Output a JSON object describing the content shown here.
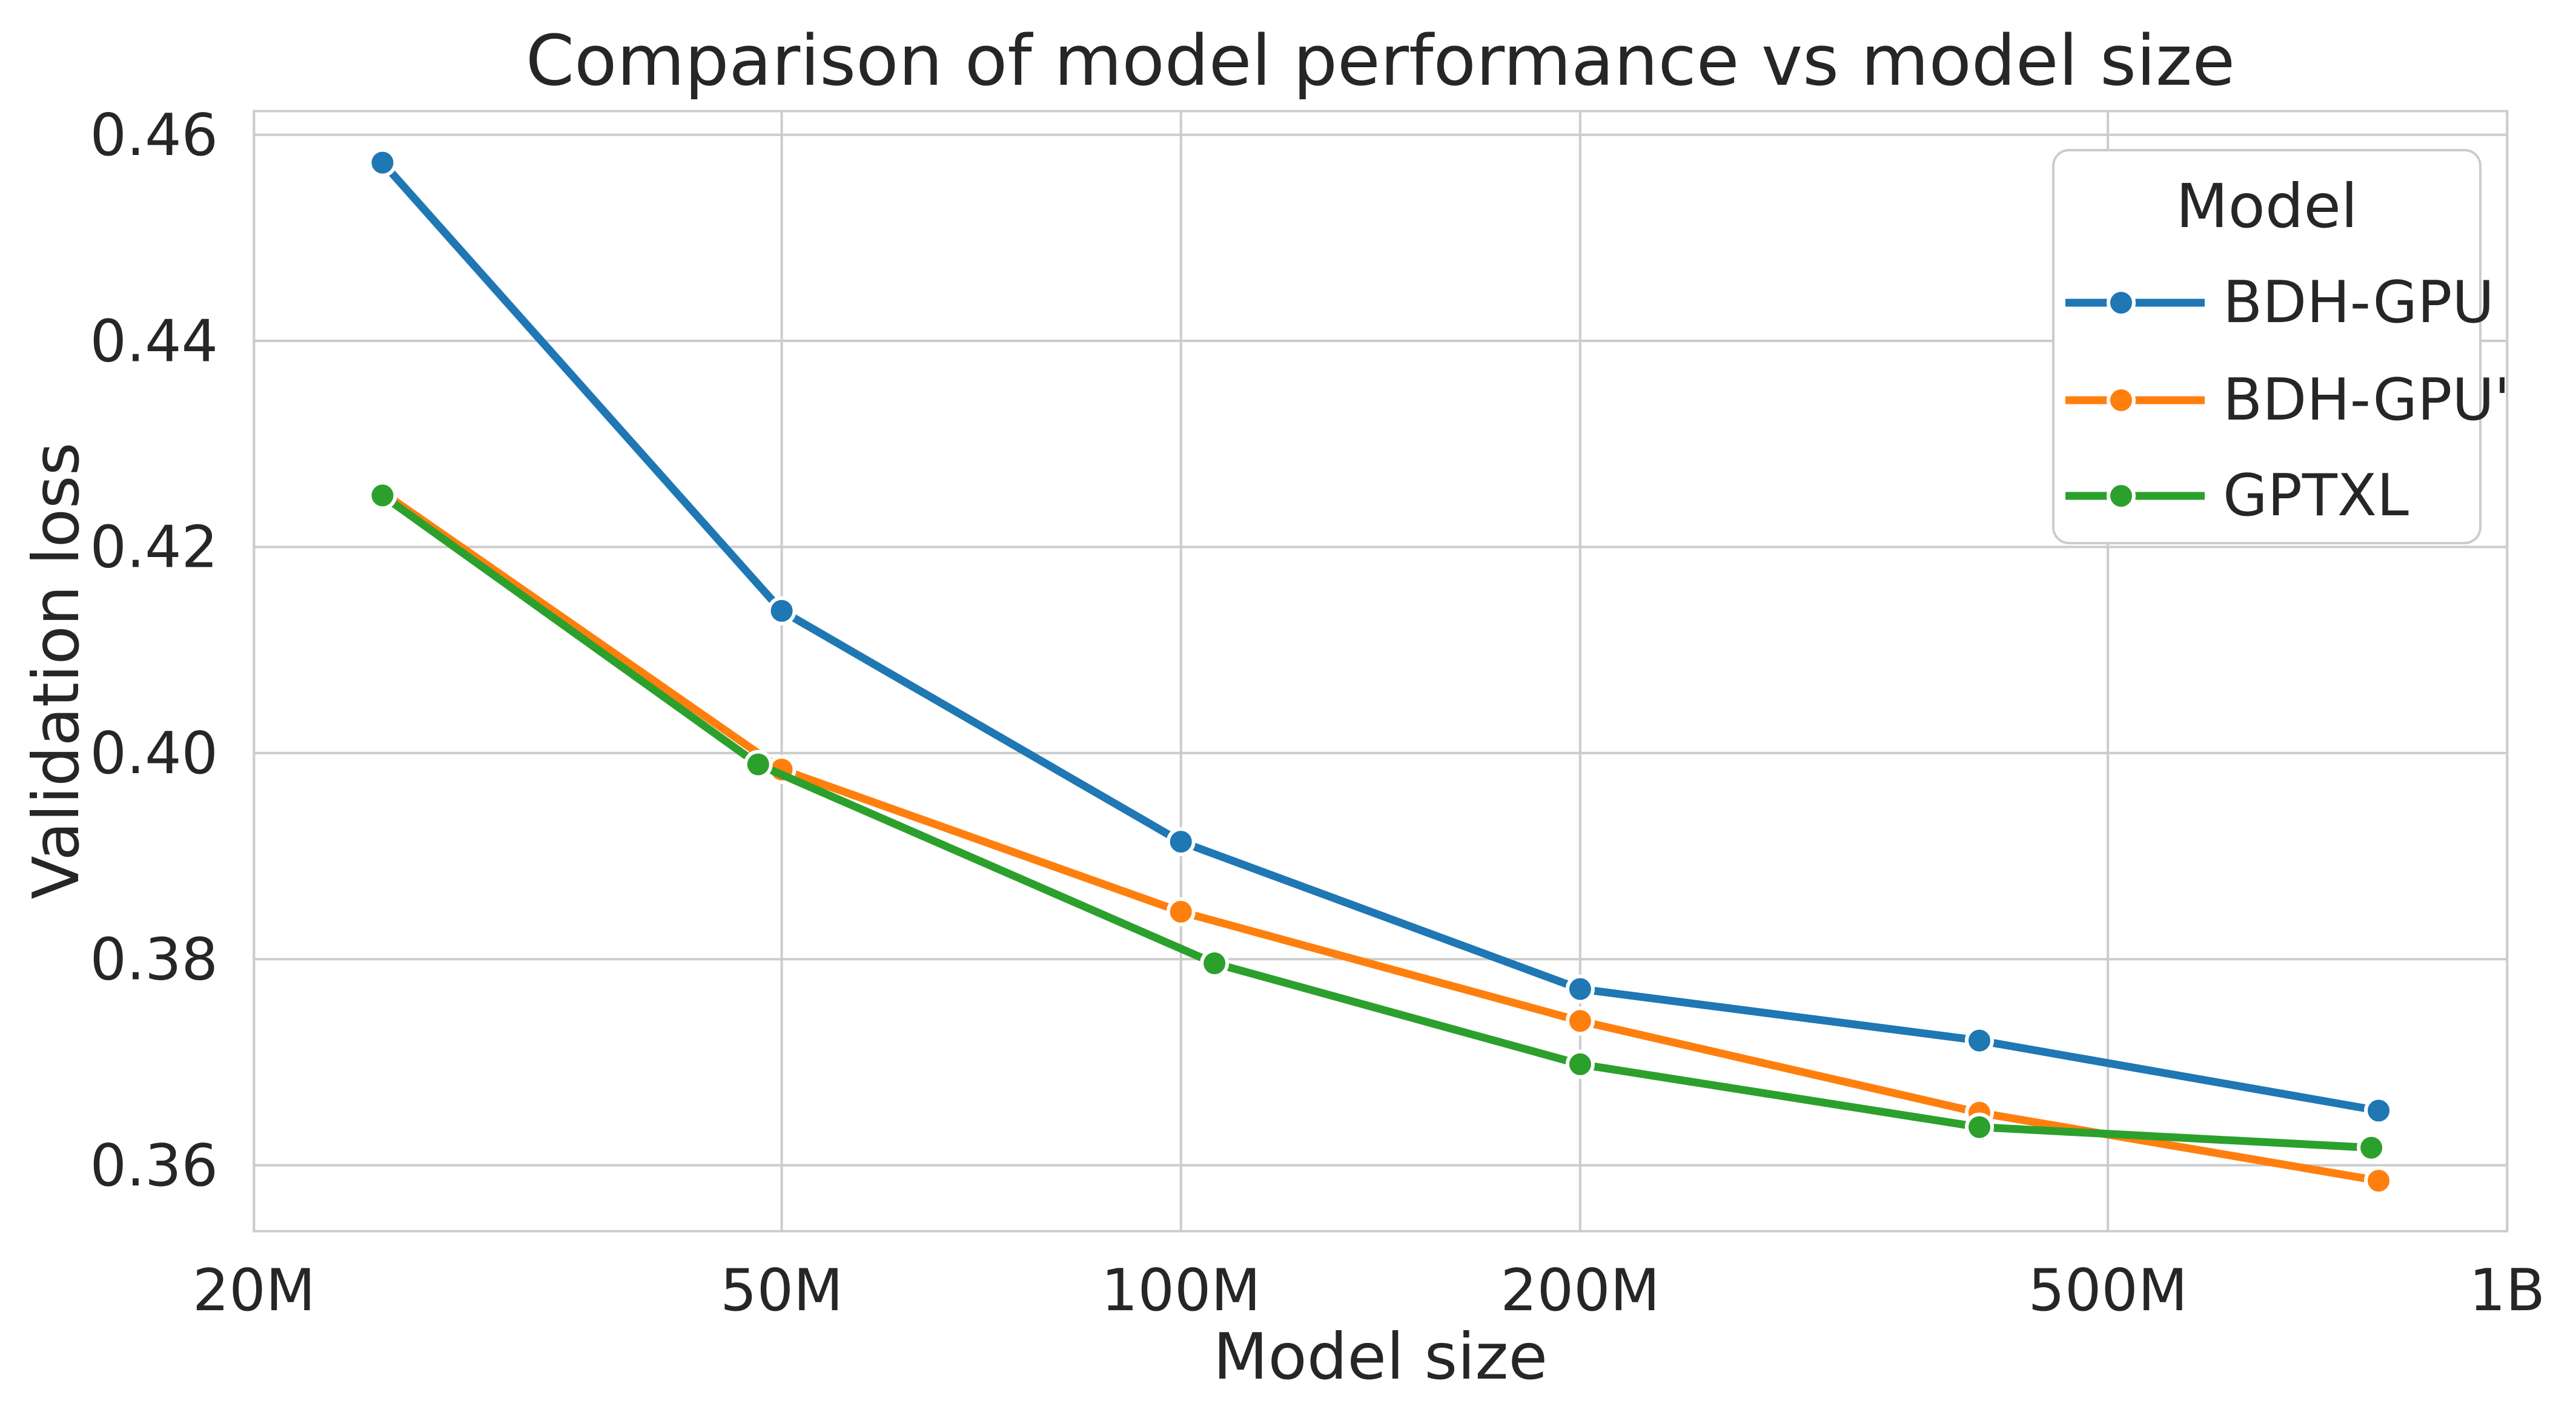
{
  "figure": {
    "background_color": "#ffffff",
    "text_color": "#262626",
    "grid_color": "#cccccc"
  },
  "chart_data": {
    "type": "line",
    "title": "Comparison of model performance vs model size",
    "xlabel": "Model size",
    "ylabel": "Validation loss",
    "x_scale": "log",
    "grid": true,
    "xlim": [
      20000000,
      1000000000
    ],
    "ylim": [
      0.3536,
      0.4623
    ],
    "x_ticks": [
      {
        "value": 20000000,
        "label": "20M"
      },
      {
        "value": 50000000,
        "label": "50M"
      },
      {
        "value": 100000000,
        "label": "100M"
      },
      {
        "value": 200000000,
        "label": "200M"
      },
      {
        "value": 500000000,
        "label": "500M"
      },
      {
        "value": 1000000000,
        "label": "1B"
      }
    ],
    "y_ticks": [
      {
        "value": 0.36,
        "label": "0.36"
      },
      {
        "value": 0.38,
        "label": "0.38"
      },
      {
        "value": 0.4,
        "label": "0.40"
      },
      {
        "value": 0.42,
        "label": "0.42"
      },
      {
        "value": 0.44,
        "label": "0.44"
      },
      {
        "value": 0.46,
        "label": "0.46"
      }
    ],
    "legend": {
      "title": "Model",
      "position": "upper right"
    },
    "series": [
      {
        "name": "BDH-GPU",
        "color": "#1f77b4",
        "x": [
          25000000,
          50000000,
          100000000,
          200000000,
          400000000,
          800000000
        ],
        "y": [
          0.4573,
          0.4138,
          0.3914,
          0.3771,
          0.3721,
          0.3653
        ]
      },
      {
        "name": "BDH-GPU'",
        "color": "#ff7f0e",
        "x": [
          25000000,
          50000000,
          100000000,
          200000000,
          400000000,
          800000000
        ],
        "y": [
          0.4253,
          0.3984,
          0.3846,
          0.374,
          0.3651,
          0.3585
        ]
      },
      {
        "name": "GPTXL",
        "color": "#2ca02c",
        "x": [
          25000000,
          48000000,
          106000000,
          200000000,
          400000000,
          790000000
        ],
        "y": [
          0.425,
          0.3989,
          0.3796,
          0.3698,
          0.3637,
          0.3617
        ]
      }
    ]
  }
}
